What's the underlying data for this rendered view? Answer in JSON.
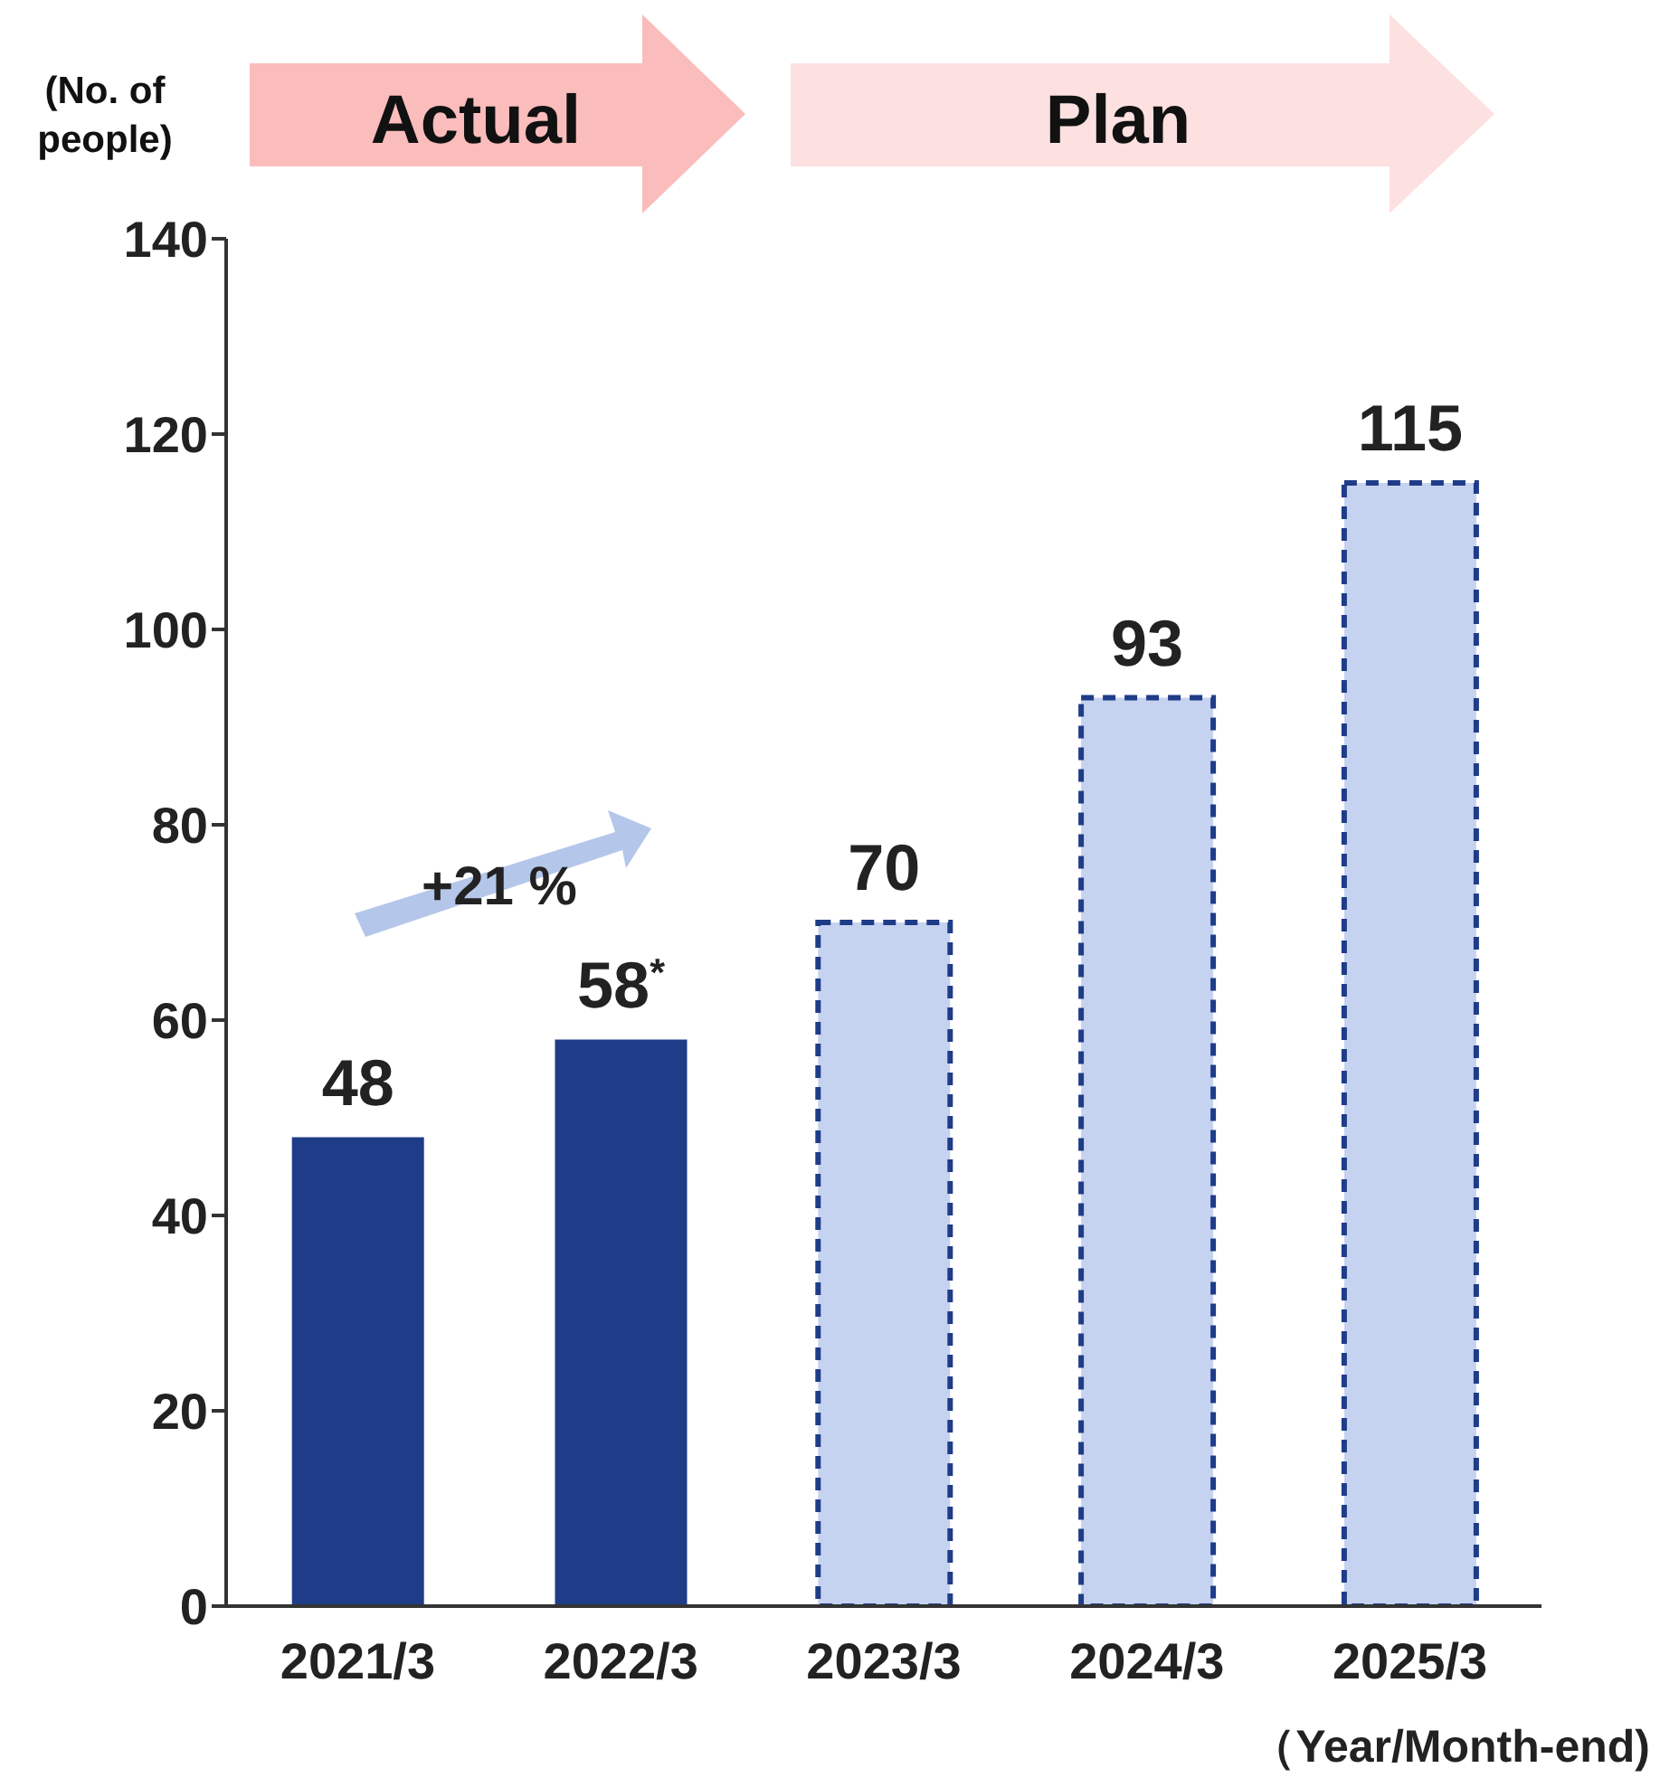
{
  "chart_data": {
    "type": "bar",
    "stacked": true,
    "ylabel": "(No. of people)",
    "xlabel": "（Year/Month-end)",
    "categories": [
      "2021/3",
      "2022/3",
      "2023/3",
      "2024/3",
      "2025/3"
    ],
    "series": [
      {
        "color": "#1f3c88",
        "values": [
          48,
          58,
          null,
          null,
          null
        ],
        "value_labels": [
          "48",
          "58$^{*}$",
          null,
          null,
          null
        ]
      },
      {
        "color": "#c6d3f0",
        "line_style": "dashed",
        "values": [
          null,
          null,
          70,
          93,
          115
        ],
        "value_labels": [
          null,
          null,
          "70",
          "93",
          "115"
        ]
      }
    ],
    "ylim": [
      0,
      140
    ],
    "yticks": [
      0,
      20,
      40,
      60,
      80,
      100,
      120,
      140
    ],
    "annotations": [
      "Actual",
      "Plan",
      "+21 %"
    ]
  }
}
